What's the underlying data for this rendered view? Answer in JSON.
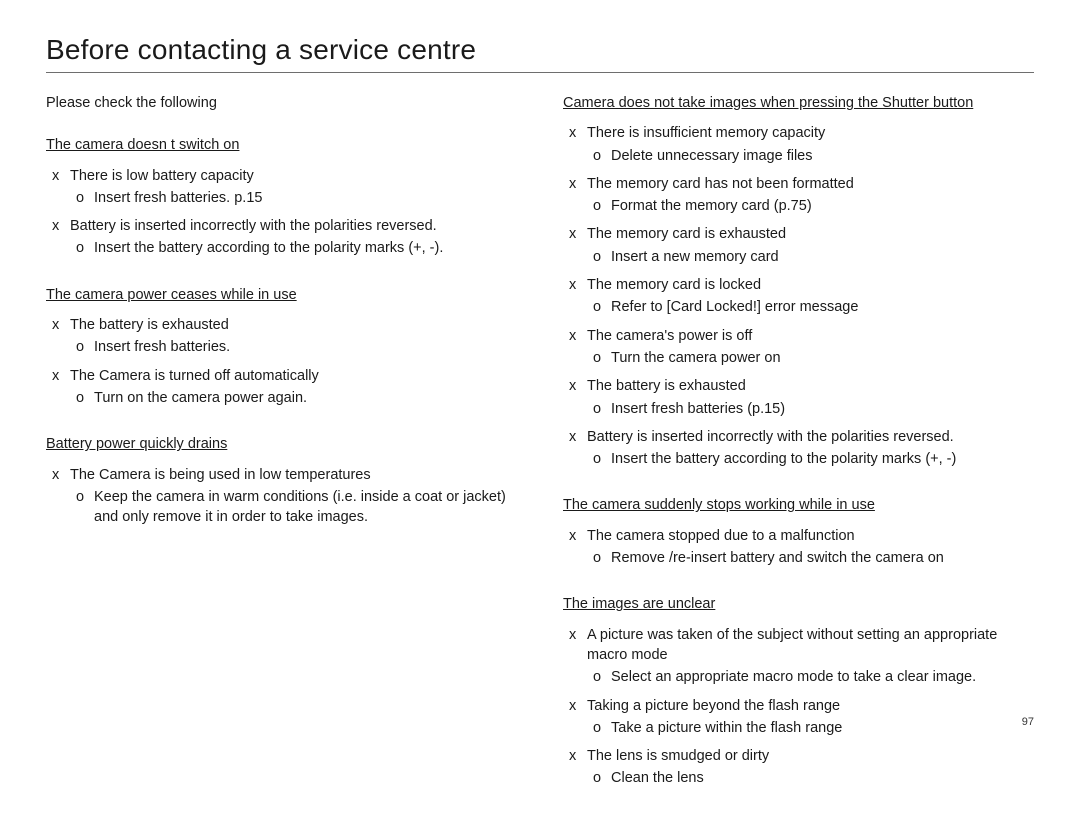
{
  "title": "Before contacting a service centre",
  "intro": "Please check the following",
  "page_number": "97",
  "bullets": {
    "cause": "x",
    "solution": "o"
  },
  "left": [
    {
      "head": "The camera doesn t switch on",
      "pairs": [
        {
          "cause": "There is low battery capacity",
          "sol": "Insert fresh batteries. p.15"
        },
        {
          "cause": "Battery is inserted incorrectly with the polarities reversed.",
          "sol": "Insert the battery according to the polarity marks (+, -)."
        }
      ]
    },
    {
      "head": "The camera power ceases while in use",
      "pairs": [
        {
          "cause": "The battery is exhausted",
          "sol": "Insert fresh batteries."
        },
        {
          "cause": "The Camera is turned off automatically",
          "sol": "Turn on the camera power again."
        }
      ]
    },
    {
      "head": "Battery power quickly drains",
      "pairs": [
        {
          "cause": "The Camera is being used in low temperatures",
          "sol": "Keep the camera in warm conditions (i.e. inside a coat or jacket) and only remove it in order to take images."
        }
      ]
    }
  ],
  "right": [
    {
      "head": "Camera does not take images when pressing the Shutter button",
      "pairs": [
        {
          "cause": "There is insufficient memory capacity",
          "sol": "Delete unnecessary image files"
        },
        {
          "cause": "The memory card has not been formatted",
          "sol": "Format the memory card (p.75)"
        },
        {
          "cause": "The memory card is exhausted",
          "sol": "Insert a new memory card"
        },
        {
          "cause": "The memory card is locked",
          "sol": "Refer to [Card Locked!] error message"
        },
        {
          "cause": "The camera's power is off",
          "sol": "Turn the camera power on"
        },
        {
          "cause": "The battery is exhausted",
          "sol": "Insert fresh batteries (p.15)"
        },
        {
          "cause": "Battery is inserted incorrectly with the polarities reversed.",
          "sol": "Insert the battery according to the polarity marks (+, -)"
        }
      ]
    },
    {
      "head": "The camera suddenly stops working while in use",
      "pairs": [
        {
          "cause": "The camera stopped due to a malfunction",
          "sol": "Remove /re-insert battery and switch the camera on"
        }
      ]
    },
    {
      "head": "The images are unclear",
      "pairs": [
        {
          "cause": "A picture was taken of the subject without setting an appropriate macro mode",
          "sol": "Select an appropriate macro mode to take a clear image."
        },
        {
          "cause": "Taking a picture beyond the flash range",
          "sol": "Take a picture within the flash range"
        },
        {
          "cause": "The lens is smudged or dirty",
          "sol": "Clean the lens"
        }
      ]
    }
  ]
}
